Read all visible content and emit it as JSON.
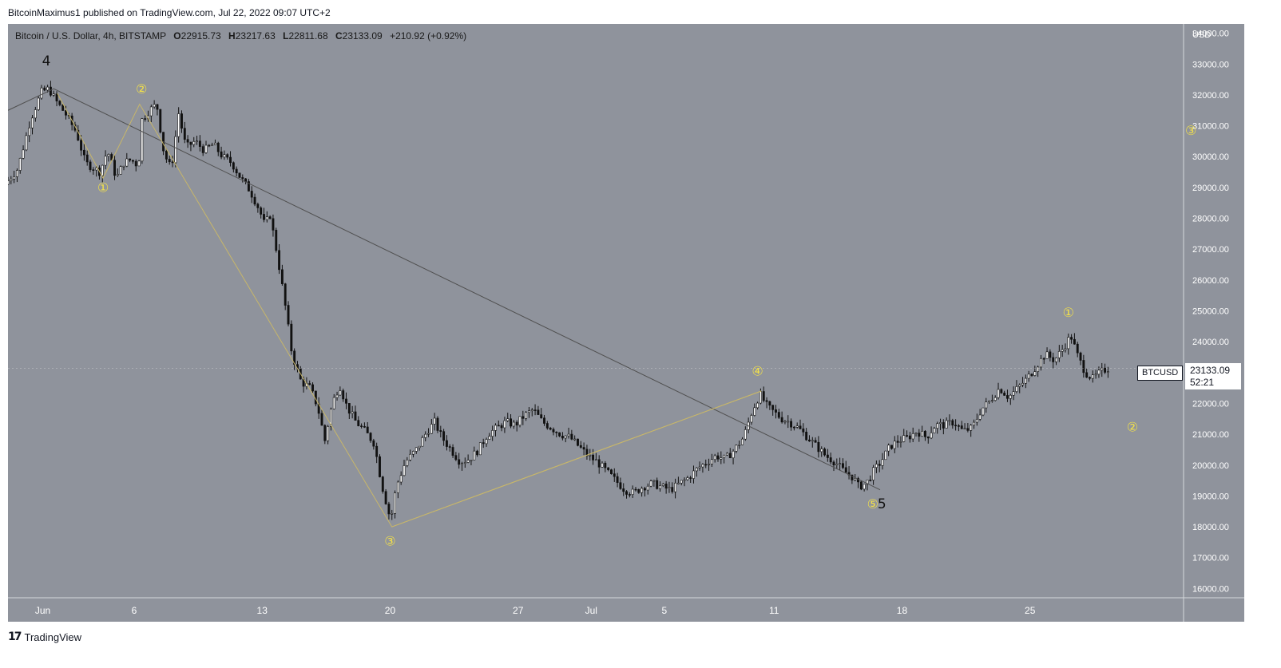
{
  "header": {
    "publisher_text": "BitcoinMaximus1 published on TradingView.com, Jul 22, 2022 09:07 UTC+2"
  },
  "symbol": {
    "title": "Bitcoin / U.S. Dollar, 4h, BITSTAMP",
    "o_label": "O",
    "o_value": "22915.73",
    "h_label": "H",
    "h_value": "23217.63",
    "l_label": "L",
    "l_value": "22811.68",
    "c_label": "C",
    "c_value": "23133.09",
    "change": "+210.92 (+0.92%)"
  },
  "price_tag": {
    "symbol": "BTCUSD",
    "price": "23133.09",
    "countdown": "52:21"
  },
  "footer": {
    "logo": "17",
    "brand": "TradingView"
  },
  "colors": {
    "background": "#8f939c",
    "candle_up": "#ffffff",
    "candle_down": "#111111",
    "wave_yellow": "#f2e04a",
    "trendline": "#505050",
    "wave_line": "#c7b66a"
  },
  "chart_data": {
    "type": "candlestick",
    "currency": "USD",
    "ylim": [
      15700,
      34300
    ],
    "y_ticks": [
      16000,
      17000,
      18000,
      19000,
      20000,
      21000,
      22000,
      23000,
      24000,
      25000,
      26000,
      27000,
      28000,
      29000,
      30000,
      31000,
      32000,
      33000,
      34000
    ],
    "y_tick_labels": [
      "16000.00",
      "17000.00",
      "18000.00",
      "19000.00",
      "20000.00",
      "21000.00",
      "22000.00",
      "23000.00",
      "24000.00",
      "25000.00",
      "26000.00",
      "27000.00",
      "28000.00",
      "29000.00",
      "30000.00",
      "31000.00",
      "32000.00",
      "33000.00",
      "34000.00"
    ],
    "x_range_days": [
      -1.9,
      62.4
    ],
    "x_ticks": [
      {
        "label": "Jun",
        "day": 0
      },
      {
        "label": "6",
        "day": 5
      },
      {
        "label": "13",
        "day": 12
      },
      {
        "label": "20",
        "day": 19
      },
      {
        "label": "27",
        "day": 26
      },
      {
        "label": "Jul",
        "day": 30
      },
      {
        "label": "5",
        "day": 34
      },
      {
        "label": "11",
        "day": 40
      },
      {
        "label": "18",
        "day": 47
      },
      {
        "label": "25",
        "day": 54
      }
    ],
    "price_path": [
      [
        -1.9,
        29100
      ],
      [
        -1.2,
        29600
      ],
      [
        -0.5,
        31200
      ],
      [
        0.1,
        32100
      ],
      [
        0.5,
        32200
      ],
      [
        0.9,
        31800
      ],
      [
        1.4,
        31400
      ],
      [
        2.0,
        30800
      ],
      [
        2.5,
        29800
      ],
      [
        3.3,
        29500
      ],
      [
        3.7,
        30200
      ],
      [
        4.2,
        29300
      ],
      [
        4.6,
        29800
      ],
      [
        5.0,
        29900
      ],
      [
        5.4,
        29700
      ],
      [
        5.6,
        31200
      ],
      [
        6.0,
        31500
      ],
      [
        6.4,
        31700
      ],
      [
        6.8,
        30100
      ],
      [
        7.2,
        29600
      ],
      [
        7.6,
        31400
      ],
      [
        8.0,
        30300
      ],
      [
        8.5,
        30500
      ],
      [
        9.0,
        30200
      ],
      [
        9.5,
        30400
      ],
      [
        10.0,
        30000
      ],
      [
        10.5,
        29800
      ],
      [
        11.0,
        29300
      ],
      [
        11.5,
        28900
      ],
      [
        12.0,
        28300
      ],
      [
        12.3,
        27800
      ],
      [
        12.6,
        28100
      ],
      [
        13.0,
        26800
      ],
      [
        13.4,
        25300
      ],
      [
        13.8,
        23600
      ],
      [
        14.3,
        22700
      ],
      [
        14.8,
        22500
      ],
      [
        15.2,
        21900
      ],
      [
        15.6,
        20800
      ],
      [
        16.0,
        22000
      ],
      [
        16.4,
        22600
      ],
      [
        16.8,
        21900
      ],
      [
        17.3,
        21400
      ],
      [
        17.8,
        21100
      ],
      [
        18.3,
        20700
      ],
      [
        18.7,
        19400
      ],
      [
        19.2,
        18200
      ],
      [
        19.5,
        19300
      ],
      [
        20.0,
        20100
      ],
      [
        20.6,
        20500
      ],
      [
        21.2,
        21100
      ],
      [
        21.6,
        21400
      ],
      [
        22.0,
        20900
      ],
      [
        22.5,
        20500
      ],
      [
        23.0,
        20100
      ],
      [
        23.5,
        20200
      ],
      [
        24.0,
        20500
      ],
      [
        24.5,
        21000
      ],
      [
        25.0,
        21200
      ],
      [
        25.5,
        21400
      ],
      [
        26.0,
        21300
      ],
      [
        26.5,
        21600
      ],
      [
        27.0,
        21800
      ],
      [
        27.5,
        21400
      ],
      [
        28.0,
        21200
      ],
      [
        28.5,
        21000
      ],
      [
        29.0,
        20900
      ],
      [
        29.5,
        20600
      ],
      [
        30.0,
        20300
      ],
      [
        30.5,
        20100
      ],
      [
        31.0,
        19800
      ],
      [
        31.5,
        19500
      ],
      [
        32.0,
        19200
      ],
      [
        32.5,
        19100
      ],
      [
        33.0,
        19300
      ],
      [
        33.5,
        19400
      ],
      [
        34.0,
        19300
      ],
      [
        34.5,
        19200
      ],
      [
        35.0,
        19400
      ],
      [
        35.5,
        19600
      ],
      [
        36.0,
        19900
      ],
      [
        36.5,
        20100
      ],
      [
        37.0,
        20300
      ],
      [
        37.5,
        20200
      ],
      [
        38.0,
        20500
      ],
      [
        38.5,
        20900
      ],
      [
        39.0,
        21800
      ],
      [
        39.4,
        22300
      ],
      [
        39.8,
        21900
      ],
      [
        40.2,
        21700
      ],
      [
        40.6,
        21500
      ],
      [
        41.0,
        21400
      ],
      [
        41.5,
        21200
      ],
      [
        42.0,
        20900
      ],
      [
        42.5,
        20600
      ],
      [
        43.0,
        20300
      ],
      [
        43.5,
        20100
      ],
      [
        44.0,
        19800
      ],
      [
        44.5,
        19600
      ],
      [
        44.8,
        19300
      ],
      [
        45.2,
        19400
      ],
      [
        45.6,
        19800
      ],
      [
        46.0,
        20100
      ],
      [
        46.5,
        20600
      ],
      [
        47.0,
        20800
      ],
      [
        47.5,
        20900
      ],
      [
        48.0,
        21100
      ],
      [
        48.5,
        20900
      ],
      [
        49.0,
        21300
      ],
      [
        49.5,
        21300
      ],
      [
        50.0,
        21400
      ],
      [
        50.5,
        21100
      ],
      [
        51.0,
        21200
      ],
      [
        51.5,
        21800
      ],
      [
        52.0,
        22100
      ],
      [
        52.5,
        22500
      ],
      [
        53.0,
        22200
      ],
      [
        53.5,
        22500
      ],
      [
        54.0,
        22800
      ],
      [
        54.5,
        23200
      ],
      [
        55.0,
        23600
      ],
      [
        55.5,
        23400
      ],
      [
        56.0,
        23800
      ],
      [
        56.4,
        24200
      ],
      [
        56.8,
        23500
      ],
      [
        57.2,
        23000
      ],
      [
        57.6,
        22800
      ],
      [
        58.0,
        23000
      ],
      [
        58.4,
        23133
      ]
    ],
    "trendline": [
      [
        -1.9,
        31500
      ],
      [
        0.6,
        32200
      ],
      [
        45.8,
        19200
      ]
    ],
    "wave_lines": [
      [
        [
          0.8,
          32050
        ],
        [
          3.3,
          29300
        ],
        [
          5.3,
          31700
        ],
        [
          19.1,
          18000
        ],
        [
          39.3,
          22400
        ]
      ],
      [
        [
          19.1,
          18000
        ],
        [
          39.3,
          22400
        ]
      ]
    ],
    "wave_labels": [
      {
        "text": "4",
        "day": 0.2,
        "price": 32950,
        "style": "black"
      },
      {
        "text": "①",
        "day": 3.3,
        "price": 28850,
        "style": "yellow"
      },
      {
        "text": "②",
        "day": 5.4,
        "price": 32050,
        "style": "yellow"
      },
      {
        "text": "③",
        "day": 19.0,
        "price": 17400,
        "style": "yellow"
      },
      {
        "text": "④",
        "day": 39.1,
        "price": 22900,
        "style": "yellow"
      },
      {
        "text": "⑤",
        "day": 45.4,
        "price": 18600,
        "style": "yellow"
      },
      {
        "text": "5",
        "day": 45.9,
        "price": 18600,
        "style": "black"
      },
      {
        "text": "①",
        "day": 56.1,
        "price": 24800,
        "style": "yellow"
      },
      {
        "text": "②",
        "day": 59.6,
        "price": 21100,
        "style": "yellow"
      },
      {
        "text": "③",
        "day": 62.8,
        "price": 30700,
        "style": "yellow"
      }
    ]
  }
}
